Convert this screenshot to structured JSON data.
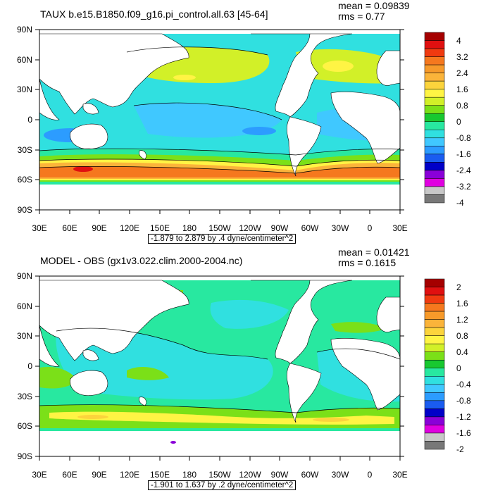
{
  "panels": [
    {
      "title": "TAUX b.e15.B1850.f09_g16.pi_control.all.63 [45-64]",
      "mean": "mean = 0.09839",
      "rms": "rms = 0.77",
      "subtitle": "-1.879 to 2.879 by .4 dyne/centimeter^2",
      "lat_labels": [
        "90N",
        "60N",
        "30N",
        "0",
        "30S",
        "60S",
        "90S"
      ],
      "lon_labels": [
        "30E",
        "60E",
        "90E",
        "120E",
        "150E",
        "180",
        "150W",
        "120W",
        "90W",
        "60W",
        "30W",
        "0",
        "30E"
      ],
      "colorbar": {
        "labels": [
          "4",
          "3.2",
          "2.4",
          "1.6",
          "0.8",
          "0",
          "-0.8",
          "-1.6",
          "-2.4",
          "-3.2",
          "-4"
        ],
        "colors": [
          "#a50000",
          "#e01010",
          "#f03a10",
          "#f5781e",
          "#f79a2a",
          "#fbb43a",
          "#fcd43c",
          "#fff444",
          "#d2f028",
          "#7be018",
          "#18c830",
          "#28e8a0",
          "#30e0e0",
          "#40c8ff",
          "#2c9cff",
          "#1a5cf0",
          "#0000c8",
          "#8a00d8",
          "#e000e0",
          "#c8c8c8",
          "#787878"
        ]
      }
    },
    {
      "title": "MODEL - OBS (gx1v3.022.clim.2000-2004.nc)",
      "mean": "mean = 0.01421",
      "rms": "rms = 0.1615",
      "subtitle": "-1.901 to 1.637 by .2 dyne/centimeter^2",
      "lat_labels": [
        "90N",
        "60N",
        "30N",
        "0",
        "30S",
        "60S",
        "90S"
      ],
      "lon_labels": [
        "30E",
        "60E",
        "90E",
        "120E",
        "150E",
        "180",
        "150W",
        "120W",
        "90W",
        "60W",
        "30W",
        "0",
        "30E"
      ],
      "colorbar": {
        "labels": [
          "2",
          "1.6",
          "1.2",
          "0.8",
          "0.4",
          "0",
          "-0.4",
          "-0.8",
          "-1.2",
          "-1.6",
          "-2"
        ],
        "colors": [
          "#a50000",
          "#e01010",
          "#f03a10",
          "#f5781e",
          "#f79a2a",
          "#fbb43a",
          "#fcd43c",
          "#fff444",
          "#d2f028",
          "#7be018",
          "#18c830",
          "#28e8a0",
          "#30e0e0",
          "#40c8ff",
          "#2c9cff",
          "#1a5cf0",
          "#0000c8",
          "#8a00d8",
          "#e000e0",
          "#c8c8c8",
          "#787878"
        ]
      }
    }
  ]
}
